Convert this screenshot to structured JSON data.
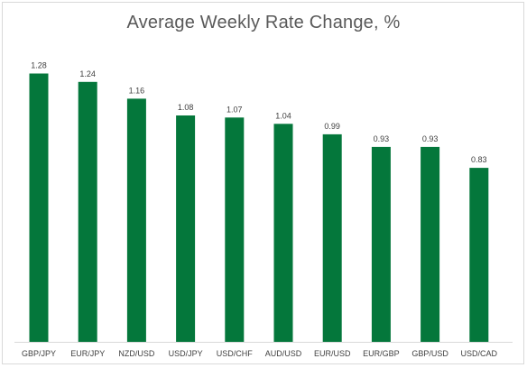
{
  "chart_data": {
    "type": "bar",
    "title": "Average Weekly Rate Change, %",
    "categories": [
      "GBP/JPY",
      "EUR/JPY",
      "NZD/USD",
      "USD/JPY",
      "USD/CHF",
      "AUD/USD",
      "EUR/USD",
      "EUR/GBP",
      "GBP/USD",
      "USD/CAD"
    ],
    "values": [
      1.28,
      1.24,
      1.16,
      1.08,
      1.07,
      1.04,
      0.99,
      0.93,
      0.93,
      0.83
    ],
    "value_labels": [
      "1.28",
      "1.24",
      "1.16",
      "1.08",
      "1.07",
      "1.04",
      "0.99",
      "0.93",
      "0.93",
      "0.83"
    ],
    "xlabel": "",
    "ylabel": "",
    "ylim": [
      0,
      1.4
    ],
    "grid": false,
    "legend": "none",
    "bar_color": "#04773b"
  }
}
